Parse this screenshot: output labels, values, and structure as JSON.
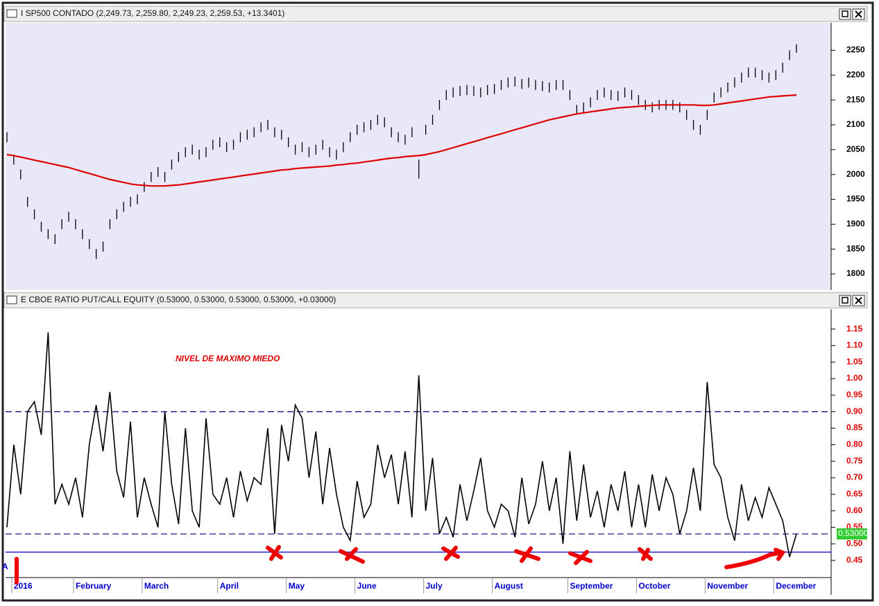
{
  "chart_data": [
    {
      "type": "ohlc",
      "title": "I SP500 CONTADO (2,249.73, 2,259.80, 2,249.23, 2,259.53, +13.3401)",
      "color": "#000000",
      "high": [
        2085,
        2040,
        2010,
        1955,
        1930,
        1905,
        1890,
        1880,
        1910,
        1925,
        1910,
        1890,
        1870,
        1850,
        1865,
        1910,
        1930,
        1945,
        1955,
        1960,
        1985,
        2005,
        2015,
        2005,
        2030,
        2045,
        2055,
        2060,
        2050,
        2055,
        2070,
        2075,
        2065,
        2070,
        2085,
        2090,
        2095,
        2105,
        2110,
        2095,
        2090,
        2075,
        2060,
        2065,
        2055,
        2060,
        2070,
        2055,
        2050,
        2065,
        2085,
        2100,
        2105,
        2110,
        2120,
        2115,
        2095,
        2085,
        2080,
        2095,
        2030,
        2100,
        2120,
        2150,
        2170,
        2175,
        2178,
        2180,
        2178,
        2175,
        2180,
        2182,
        2190,
        2195,
        2197,
        2192,
        2195,
        2190,
        2188,
        2185,
        2190,
        2190,
        2170,
        2140,
        2145,
        2155,
        2170,
        2175,
        2170,
        2168,
        2175,
        2170,
        2160,
        2150,
        2145,
        2150,
        2150,
        2150,
        2145,
        2130,
        2110,
        2100,
        2130,
        2165,
        2175,
        2185,
        2195,
        2205,
        2215,
        2215,
        2210,
        2205,
        2210,
        2225,
        2250,
        2262
      ],
      "low": [
        2065,
        2020,
        1990,
        1935,
        1910,
        1885,
        1870,
        1860,
        1890,
        1905,
        1890,
        1870,
        1850,
        1830,
        1845,
        1890,
        1910,
        1925,
        1935,
        1940,
        1965,
        1985,
        1995,
        1985,
        2010,
        2025,
        2035,
        2040,
        2030,
        2035,
        2050,
        2055,
        2045,
        2050,
        2065,
        2070,
        2075,
        2085,
        2090,
        2075,
        2070,
        2055,
        2040,
        2045,
        2035,
        2040,
        2050,
        2035,
        2030,
        2045,
        2065,
        2080,
        2085,
        2090,
        2100,
        2095,
        2075,
        2065,
        2060,
        2075,
        1992,
        2080,
        2100,
        2130,
        2150,
        2155,
        2158,
        2160,
        2158,
        2155,
        2160,
        2162,
        2170,
        2175,
        2177,
        2172,
        2175,
        2170,
        2168,
        2165,
        2170,
        2170,
        2150,
        2120,
        2125,
        2135,
        2150,
        2155,
        2150,
        2148,
        2155,
        2150,
        2140,
        2130,
        2125,
        2130,
        2130,
        2130,
        2125,
        2110,
        2090,
        2080,
        2110,
        2145,
        2155,
        2165,
        2175,
        2185,
        2195,
        2195,
        2190,
        2185,
        2190,
        2205,
        2230,
        2245
      ],
      "ma": {
        "color": "#e00000",
        "values": [
          2040,
          2038,
          2035,
          2032,
          2029,
          2026,
          2023,
          2020,
          2017,
          2014,
          2010,
          2006,
          2002,
          1998,
          1994,
          1990,
          1987,
          1984,
          1981,
          1979,
          1978,
          1977,
          1977,
          1977,
          1978,
          1979,
          1981,
          1983,
          1985,
          1987,
          1989,
          1991,
          1993,
          1995,
          1997,
          1999,
          2001,
          2003,
          2005,
          2007,
          2009,
          2010,
          2012,
          2013,
          2014,
          2015,
          2016,
          2017,
          2019,
          2020,
          2022,
          2023,
          2025,
          2027,
          2029,
          2031,
          2033,
          2034,
          2036,
          2037,
          2038,
          2040,
          2043,
          2046,
          2050,
          2054,
          2058,
          2062,
          2066,
          2070,
          2074,
          2078,
          2082,
          2086,
          2090,
          2094,
          2098,
          2102,
          2106,
          2110,
          2113,
          2116,
          2119,
          2122,
          2124,
          2126,
          2128,
          2130,
          2132,
          2134,
          2135,
          2136,
          2137,
          2138,
          2139,
          2140,
          2140,
          2140,
          2140,
          2140,
          2140,
          2139,
          2139,
          2140,
          2142,
          2144,
          2146,
          2148,
          2150,
          2152,
          2154,
          2156,
          2157,
          2158,
          2159,
          2160
        ]
      },
      "ylim": [
        1768,
        2305
      ],
      "yticks": [
        1800,
        1850,
        1900,
        1950,
        2000,
        2050,
        2100,
        2150,
        2200,
        2250
      ],
      "tick_color": "#000000",
      "background": "#e8e8f8"
    },
    {
      "type": "line",
      "title": "E CBOE RATIO PUT/CALL EQUITY (0.53000, 0.53000, 0.53000, 0.53000, +0.03000)",
      "color": "#000000",
      "categories": [
        null,
        "2016",
        null,
        null,
        null,
        null,
        null,
        null,
        null,
        null,
        "February",
        null,
        null,
        null,
        null,
        null,
        null,
        null,
        null,
        null,
        "March",
        null,
        null,
        null,
        null,
        null,
        null,
        null,
        null,
        null,
        null,
        "April",
        null,
        null,
        null,
        null,
        null,
        null,
        null,
        null,
        null,
        "May",
        null,
        null,
        null,
        null,
        null,
        null,
        null,
        null,
        null,
        "June",
        null,
        null,
        null,
        null,
        null,
        null,
        null,
        null,
        null,
        "July",
        null,
        null,
        null,
        null,
        null,
        null,
        null,
        null,
        null,
        "August",
        null,
        null,
        null,
        null,
        null,
        null,
        null,
        null,
        null,
        null,
        "September",
        null,
        null,
        null,
        null,
        null,
        null,
        null,
        null,
        null,
        "October",
        null,
        null,
        null,
        null,
        null,
        null,
        null,
        null,
        null,
        "November",
        null,
        null,
        null,
        null,
        null,
        null,
        null,
        null,
        null,
        "December",
        null,
        null,
        null
      ],
      "values": [
        0.55,
        0.8,
        0.65,
        0.9,
        0.93,
        0.83,
        1.14,
        0.62,
        0.68,
        0.62,
        0.7,
        0.58,
        0.8,
        0.92,
        0.78,
        0.96,
        0.72,
        0.64,
        0.87,
        0.58,
        0.7,
        0.62,
        0.55,
        0.9,
        0.68,
        0.56,
        0.85,
        0.6,
        0.55,
        0.88,
        0.65,
        0.62,
        0.7,
        0.58,
        0.72,
        0.63,
        0.7,
        0.68,
        0.85,
        0.53,
        0.86,
        0.75,
        0.92,
        0.88,
        0.7,
        0.84,
        0.62,
        0.79,
        0.65,
        0.55,
        0.51,
        0.69,
        0.58,
        0.62,
        0.8,
        0.7,
        0.77,
        0.62,
        0.78,
        0.58,
        1.01,
        0.6,
        0.76,
        0.53,
        0.58,
        0.52,
        0.68,
        0.57,
        0.66,
        0.76,
        0.6,
        0.55,
        0.62,
        0.6,
        0.52,
        0.7,
        0.56,
        0.62,
        0.75,
        0.6,
        0.7,
        0.5,
        0.78,
        0.57,
        0.74,
        0.58,
        0.66,
        0.55,
        0.68,
        0.6,
        0.72,
        0.55,
        0.68,
        0.55,
        0.71,
        0.6,
        0.7,
        0.65,
        0.53,
        0.6,
        0.73,
        0.6,
        0.99,
        0.74,
        0.7,
        0.58,
        0.51,
        0.68,
        0.57,
        0.64,
        0.58,
        0.67,
        0.62,
        0.57,
        0.46,
        0.53
      ],
      "last_label": "0.53000",
      "ylim": [
        0.4,
        1.21
      ],
      "yticks": [
        0.45,
        {
          "value": 0.5,
          "label": "0.50"
        },
        0.55,
        {
          "value": 0.6,
          "label": "0.60"
        },
        0.65,
        {
          "value": 0.7,
          "label": "0.70"
        },
        0.75,
        {
          "value": 0.8,
          "label": "0.80"
        },
        0.85,
        {
          "value": 0.9,
          "label": "0.90"
        },
        0.95,
        {
          "value": 1.0,
          "label": "1.00"
        },
        1.05,
        {
          "value": 1.1,
          "label": "1.10"
        },
        1.15
      ],
      "tick_color": "#e00000",
      "x_label_color": "#0000cc",
      "hlines": [
        {
          "value": 0.9,
          "color": "#000080",
          "dashed": true
        },
        {
          "value": 0.53,
          "color": "#000080",
          "dashed": true
        },
        {
          "value": 0.475,
          "color": "#0000cc",
          "dashed": false
        }
      ],
      "annotation": "NIVEL DE MAXIMO MIEDO",
      "annotation_color": "#e00000",
      "left_edge_text": "A",
      "background": "#ffffff"
    }
  ]
}
